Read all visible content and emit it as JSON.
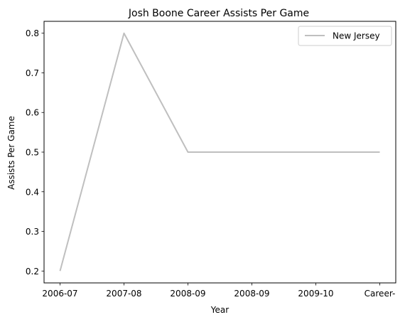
{
  "chart_data": {
    "type": "line",
    "title": "Josh Boone  Career Assists Per Game",
    "xlabel": "Year",
    "ylabel": "Assists Per Game",
    "categories": [
      "2006-07",
      "2007-08",
      "2008-09",
      "2008-09",
      "2009-10",
      "Career-"
    ],
    "x": [
      0,
      1.25,
      2.5,
      3.75,
      5.0,
      6.25
    ],
    "x_tick_positions": [
      0,
      1,
      2,
      3,
      4,
      5
    ],
    "series": [
      {
        "name": "New Jersey",
        "color": "#bfbfbf",
        "x": [
          0,
          1.25,
          2.5,
          3.75,
          5.0,
          6.25
        ],
        "values": [
          0.2,
          0.8,
          0.5,
          0.5,
          0.5,
          0.5
        ]
      }
    ],
    "y_ticks": [
      "0.2",
      "0.3",
      "0.4",
      "0.5",
      "0.6",
      "0.7",
      "0.8"
    ],
    "ylim": [
      0.17,
      0.83
    ],
    "grid": false,
    "legend_position": "top-right"
  }
}
